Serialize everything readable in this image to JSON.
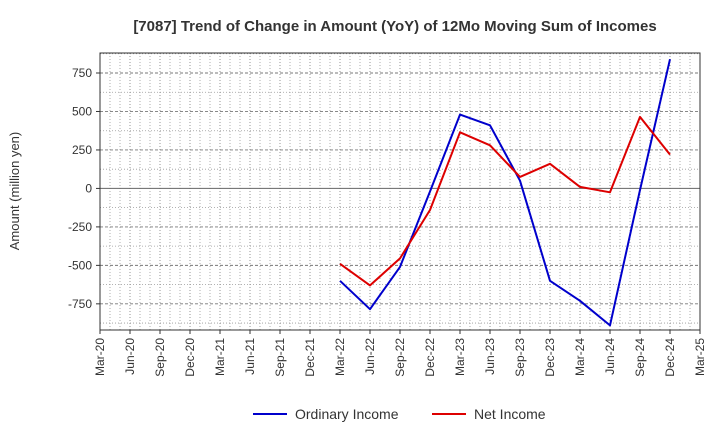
{
  "chart_data": {
    "type": "line",
    "title": "[7087]  Trend of Change in Amount (YoY) of 12Mo Moving Sum of Incomes",
    "ylabel": "Amount (million yen)",
    "xlabel": "",
    "ylim": [
      -920,
      880
    ],
    "yticks": [
      750,
      500,
      250,
      0,
      -250,
      -500,
      -750
    ],
    "ytick_labels": [
      "750",
      "500",
      "250",
      "0",
      "-250",
      "-500",
      "-750"
    ],
    "categories": [
      "Mar-20",
      "Jun-20",
      "Sep-20",
      "Dec-20",
      "Mar-21",
      "Jun-21",
      "Sep-21",
      "Dec-21",
      "Mar-22",
      "Jun-22",
      "Sep-22",
      "Dec-22",
      "Mar-23",
      "Jun-23",
      "Sep-23",
      "Dec-23",
      "Mar-24",
      "Jun-24",
      "Sep-24",
      "Dec-24",
      "Mar-25"
    ],
    "grid": true,
    "legend_position": "bottom",
    "series": [
      {
        "name": "Ordinary Income",
        "color": "#0000cc",
        "values": [
          null,
          null,
          null,
          null,
          null,
          null,
          null,
          null,
          -600,
          -785,
          -510,
          -20,
          480,
          410,
          50,
          -600,
          -730,
          -890,
          -10,
          840,
          null
        ]
      },
      {
        "name": "Net Income",
        "color": "#dd0000",
        "values": [
          null,
          null,
          null,
          null,
          null,
          null,
          null,
          null,
          -490,
          -630,
          -455,
          -140,
          365,
          280,
          75,
          160,
          10,
          -25,
          465,
          220,
          null
        ]
      }
    ]
  }
}
